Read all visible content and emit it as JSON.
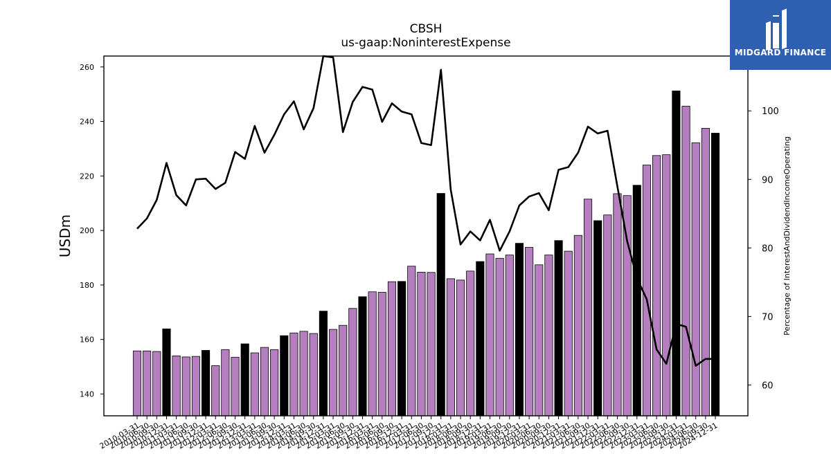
{
  "header": {
    "title": "CBSH",
    "subtitle": "us-gaap:NoninterestExpense"
  },
  "logo": {
    "text": "MIDGARD FINANCE",
    "bg_color": "#2f5fb0"
  },
  "colors": {
    "bar_default": "#b57fbf",
    "bar_q4": "#000000",
    "line": "#000000"
  },
  "chart_data": {
    "type": "bar",
    "title": "CBSH",
    "subtitle": "us-gaap:NoninterestExpense",
    "ylabel": "USDm",
    "y2label": "Percentage of InterestAndDividendIncomeOperating",
    "ylim": [
      132,
      264
    ],
    "y2lim": [
      55.5,
      108
    ],
    "yticks": [
      140,
      160,
      180,
      200,
      220,
      240,
      260
    ],
    "y2ticks": [
      60,
      70,
      80,
      90,
      100
    ],
    "categories": [
      "2010-03-31",
      "2010-06-30",
      "2010-09-30",
      "2010-12-31",
      "2011-03-31",
      "2011-06-30",
      "2011-09-30",
      "2011-12-31",
      "2012-03-31",
      "2012-06-30",
      "2012-09-30",
      "2012-12-31",
      "2013-03-31",
      "2013-06-30",
      "2013-09-30",
      "2013-12-31",
      "2014-03-31",
      "2014-06-30",
      "2014-09-30",
      "2014-12-31",
      "2015-03-31",
      "2015-06-30",
      "2015-09-30",
      "2015-12-31",
      "2016-03-31",
      "2016-06-30",
      "2016-09-30",
      "2016-12-31",
      "2017-03-31",
      "2017-06-30",
      "2017-09-30",
      "2017-12-31",
      "2018-03-31",
      "2018-06-30",
      "2018-09-30",
      "2018-12-31",
      "2019-03-31",
      "2019-06-30",
      "2019-09-30",
      "2019-12-31",
      "2020-03-31",
      "2020-06-30",
      "2020-09-30",
      "2020-12-31",
      "2021-03-31",
      "2021-06-30",
      "2021-09-30",
      "2021-12-31",
      "2022-03-31",
      "2022-06-30",
      "2022-09-30",
      "2022-12-31",
      "2023-03-31",
      "2023-06-30",
      "2023-09-30",
      "2023-12-31",
      "2024-03-31",
      "2024-06-30",
      "2024-09-30",
      "2024-12-31"
    ],
    "series": [
      {
        "kind": "bar",
        "axis": "left",
        "values": [
          155.8,
          155.8,
          155.6,
          163.9,
          154.0,
          153.6,
          153.8,
          156.0,
          150.4,
          156.3,
          153.5,
          158.4,
          155.1,
          157.1,
          156.3,
          161.4,
          162.4,
          163.0,
          162.2,
          170.4,
          163.7,
          165.2,
          171.4,
          175.7,
          177.5,
          177.3,
          181.2,
          181.3,
          186.9,
          184.7,
          184.6,
          213.6,
          182.3,
          181.8,
          185.1,
          188.6,
          191.4,
          189.8,
          191.0,
          195.3,
          193.8,
          187.4,
          191.0,
          196.3,
          192.4,
          198.2,
          211.5,
          203.6,
          205.7,
          213.5,
          212.8,
          216.6,
          224.0,
          227.5,
          227.8,
          251.2,
          245.6,
          232.2,
          237.5,
          235.7
        ]
      },
      {
        "kind": "line",
        "axis": "right",
        "values": [
          82.8,
          84.3,
          87.0,
          92.4,
          87.7,
          86.2,
          90.0,
          90.1,
          88.6,
          89.5,
          94.0,
          93.0,
          97.8,
          93.9,
          96.5,
          99.5,
          101.4,
          97.3,
          100.4,
          108.0,
          107.8,
          96.9,
          101.3,
          103.5,
          103.1,
          98.4,
          101.1,
          99.9,
          99.5,
          95.3,
          95.0,
          106.0,
          88.5,
          80.5,
          82.4,
          81.1,
          84.1,
          79.6,
          82.4,
          86.2,
          87.5,
          88.0,
          85.5,
          91.4,
          91.8,
          93.9,
          97.7,
          96.7,
          97.1,
          89.0,
          81.0,
          75.6,
          72.5,
          65.2,
          63.1,
          68.9,
          68.5,
          62.8,
          63.8,
          63.8
        ]
      }
    ],
    "q4_bar_color": "#000000",
    "bar_color": "#b57fbf",
    "grid": false,
    "legend": "none"
  }
}
